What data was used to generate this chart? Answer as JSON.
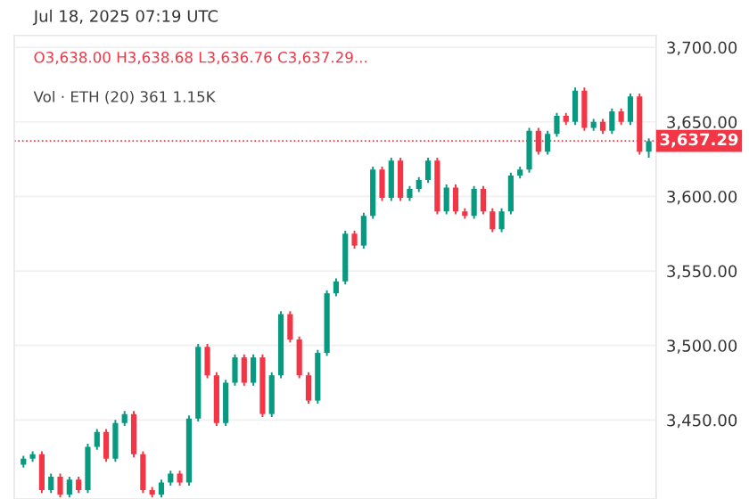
{
  "chart_data": {
    "type": "candlestick",
    "title": "Jul 18, 2025 07:19 UTC",
    "annotations": [
      "O3,638.00 H3,638.68 L3,636.76 C3,637.29...",
      "Vol · ETH (20) 361 1.15K"
    ],
    "categories": [
      null,
      null,
      null,
      null,
      null,
      null,
      null,
      null,
      null,
      null,
      null,
      null,
      null,
      null,
      null,
      null,
      null,
      null,
      null,
      null,
      null,
      null,
      null,
      null,
      null,
      null,
      null,
      null,
      null,
      null,
      null,
      null,
      null,
      null,
      null,
      null,
      null,
      null,
      null,
      null,
      null,
      null,
      null,
      null,
      null,
      null,
      null,
      null,
      null,
      null,
      null,
      null,
      null,
      null,
      null,
      null,
      null,
      null,
      null,
      null,
      null,
      null,
      null,
      null,
      null,
      null,
      null,
      null,
      null
    ],
    "ohlc": [
      [
        3420,
        3426,
        3418,
        3424
      ],
      [
        3424,
        3429,
        3422,
        3427
      ],
      [
        3427,
        3429,
        3401,
        3403
      ],
      [
        3403,
        3414,
        3401,
        3412
      ],
      [
        3412,
        3414,
        3398,
        3400
      ],
      [
        3400,
        3412,
        3398,
        3410
      ],
      [
        3410,
        3412,
        3401,
        3403
      ],
      [
        3403,
        3434,
        3401,
        3432
      ],
      [
        3432,
        3444,
        3430,
        3442
      ],
      [
        3442,
        3444,
        3422,
        3424
      ],
      [
        3424,
        3450,
        3422,
        3448
      ],
      [
        3448,
        3456,
        3446,
        3454
      ],
      [
        3454,
        3456,
        3425,
        3427
      ],
      [
        3427,
        3429,
        3401,
        3403
      ],
      [
        3403,
        3405,
        3398,
        3400
      ],
      [
        3400,
        3410,
        3398,
        3408
      ],
      [
        3408,
        3416,
        3406,
        3414
      ],
      [
        3414,
        3416,
        3406,
        3408
      ],
      [
        3408,
        3453,
        3406,
        3451
      ],
      [
        3451,
        3501,
        3449,
        3499
      ],
      [
        3499,
        3501,
        3478,
        3480
      ],
      [
        3480,
        3482,
        3446,
        3448
      ],
      [
        3448,
        3477,
        3446,
        3475
      ],
      [
        3475,
        3494,
        3473,
        3492
      ],
      [
        3492,
        3494,
        3473,
        3475
      ],
      [
        3475,
        3494,
        3473,
        3492
      ],
      [
        3492,
        3494,
        3452,
        3454
      ],
      [
        3454,
        3482,
        3452,
        3480
      ],
      [
        3480,
        3523,
        3478,
        3521
      ],
      [
        3521,
        3523,
        3502,
        3504
      ],
      [
        3504,
        3506,
        3478,
        3480
      ],
      [
        3480,
        3482,
        3461,
        3463
      ],
      [
        3463,
        3497,
        3461,
        3495
      ],
      [
        3495,
        3537,
        3493,
        3535
      ],
      [
        3535,
        3545,
        3533,
        3543
      ],
      [
        3543,
        3577,
        3541,
        3575
      ],
      [
        3575,
        3577,
        3565,
        3567
      ],
      [
        3567,
        3589,
        3565,
        3587
      ],
      [
        3587,
        3620,
        3585,
        3618
      ],
      [
        3618,
        3620,
        3597,
        3599
      ],
      [
        3599,
        3626,
        3597,
        3624
      ],
      [
        3624,
        3626,
        3597,
        3599
      ],
      [
        3599,
        3607,
        3597,
        3605
      ],
      [
        3605,
        3613,
        3603,
        3611
      ],
      [
        3611,
        3626,
        3609,
        3624
      ],
      [
        3624,
        3626,
        3588,
        3590
      ],
      [
        3590,
        3608,
        3588,
        3606
      ],
      [
        3606,
        3608,
        3588,
        3590
      ],
      [
        3590,
        3592,
        3585,
        3587
      ],
      [
        3587,
        3607,
        3585,
        3605
      ],
      [
        3605,
        3607,
        3588,
        3590
      ],
      [
        3590,
        3592,
        3576,
        3578
      ],
      [
        3578,
        3592,
        3576,
        3590
      ],
      [
        3590,
        3616,
        3588,
        3614
      ],
      [
        3614,
        3620,
        3612,
        3618
      ],
      [
        3618,
        3646,
        3616,
        3644
      ],
      [
        3644,
        3646,
        3628,
        3630
      ],
      [
        3630,
        3644,
        3628,
        3642
      ],
      [
        3642,
        3656,
        3640,
        3654
      ],
      [
        3654,
        3656,
        3648,
        3650
      ],
      [
        3650,
        3673,
        3648,
        3671
      ],
      [
        3671,
        3673,
        3644,
        3646
      ],
      [
        3646,
        3652,
        3644,
        3650
      ],
      [
        3650,
        3652,
        3642,
        3644
      ],
      [
        3644,
        3659,
        3642,
        3657
      ],
      [
        3657,
        3659,
        3648,
        3650
      ],
      [
        3650,
        3669,
        3648,
        3667
      ],
      [
        3667,
        3669,
        3628,
        3630
      ],
      [
        3630,
        3639,
        3626,
        3637
      ]
    ],
    "ylim": [
      3397,
      3708
    ],
    "yticks": [
      {
        "value": 3450,
        "label": "3,450.00"
      },
      {
        "value": 3500,
        "label": "3,500.00"
      },
      {
        "value": 3550,
        "label": "3,550.00"
      },
      {
        "value": 3600,
        "label": "3,600.00"
      },
      {
        "value": 3650,
        "label": "3,650.00"
      },
      {
        "value": 3700,
        "label": "3,700.00"
      }
    ],
    "ref_lines": [
      {
        "axis": "y",
        "value": 3637.29,
        "label": "3,637.29",
        "color": "#f23645",
        "line_style": "dotted"
      }
    ],
    "grid": true
  }
}
